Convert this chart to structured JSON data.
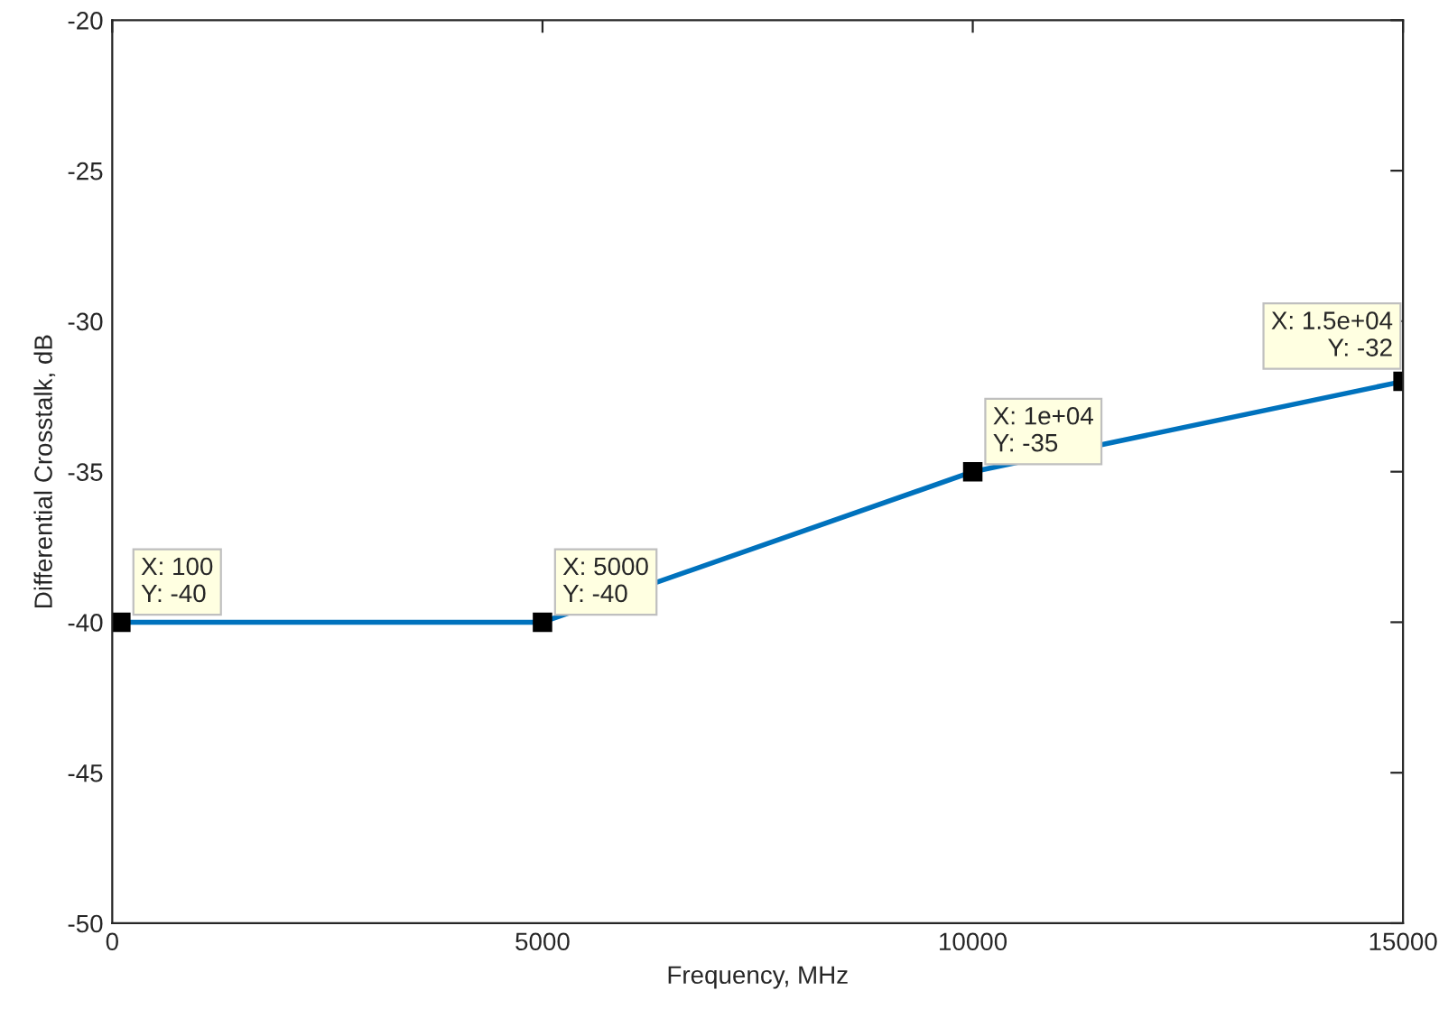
{
  "chart_data": {
    "type": "line",
    "xlabel": "Frequency, MHz",
    "ylabel": "Differential Crosstalk, dB",
    "x": [
      100,
      5000,
      10000,
      15000
    ],
    "series": [
      {
        "color": "#0072bd",
        "values": [
          -40,
          -40,
          -35,
          -32
        ]
      }
    ],
    "marker": "square",
    "line_style": "solid",
    "grid": false,
    "xlim": [
      0,
      15000
    ],
    "xticks": [
      0,
      5000,
      10000,
      15000
    ],
    "ylim": [
      -50,
      -20
    ],
    "yticks": [
      -50,
      -45,
      -40,
      -35,
      -30,
      -25,
      -20
    ],
    "annotations": [
      {
        "text": "X: 100\nY: -40",
        "x": 100,
        "y": -40
      },
      {
        "text": "X: 5000\nY: -40",
        "x": 5000,
        "y": -40
      },
      {
        "text": "X: 1e+04\nY: -35",
        "x": 10000,
        "y": -35
      },
      {
        "text": "X: 1.5e+04\nY: -32",
        "x": 15000,
        "y": -32
      }
    ]
  }
}
